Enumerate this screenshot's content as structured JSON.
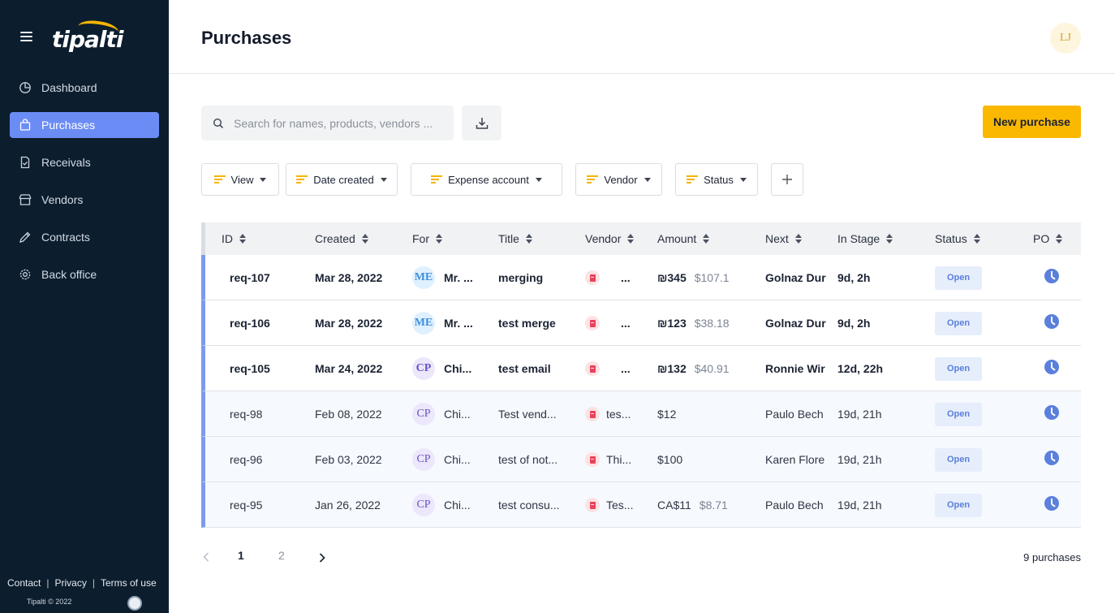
{
  "app": {
    "logo_text": "tipalti"
  },
  "sidebar": {
    "items": [
      {
        "label": "Dashboard",
        "icon": "pie-chart-icon"
      },
      {
        "label": "Purchases",
        "icon": "bag-icon",
        "active": true
      },
      {
        "label": "Receivals",
        "icon": "document-check-icon"
      },
      {
        "label": "Vendors",
        "icon": "store-icon"
      },
      {
        "label": "Contracts",
        "icon": "pen-icon"
      },
      {
        "label": "Back office",
        "icon": "gear-icon"
      }
    ],
    "footer": {
      "contact": "Contact",
      "privacy": "Privacy",
      "terms": "Terms of use",
      "copyright": "Tipalti © 2022"
    }
  },
  "header": {
    "title": "Purchases",
    "avatar_initials": "LJ"
  },
  "toolbar": {
    "search_placeholder": "Search for names, products, vendors ...",
    "new_button": "New purchase"
  },
  "filters": {
    "view": "View",
    "date_created": "Date created",
    "expense_account": "Expense account",
    "vendor": "Vendor",
    "status": "Status"
  },
  "table": {
    "columns": {
      "id": "ID",
      "created": "Created",
      "for": "For",
      "title": "Title",
      "vendor": "Vendor",
      "amount": "Amount",
      "next": "Next",
      "in_stage": "In Stage",
      "status": "Status",
      "po": "PO"
    },
    "rows": [
      {
        "id": "req-107",
        "created": "Mar 28, 2022",
        "for_initials": "ME",
        "for_name": "Mr. ...",
        "title": "merging",
        "vendor": "...",
        "amount": "₪345",
        "amount_usd": "$107.1",
        "next": "Golnaz Dur",
        "in_stage": "9d, 2h",
        "status": "Open"
      },
      {
        "id": "req-106",
        "created": "Mar 28, 2022",
        "for_initials": "ME",
        "for_name": "Mr. ...",
        "title": "test merge",
        "vendor": "...",
        "amount": "₪123",
        "amount_usd": "$38.18",
        "next": "Golnaz Dur",
        "in_stage": "9d, 2h",
        "status": "Open"
      },
      {
        "id": "req-105",
        "created": "Mar 24, 2022",
        "for_initials": "CP",
        "for_name": "Chi...",
        "title": "test email",
        "vendor": "...",
        "amount": "₪132",
        "amount_usd": "$40.91",
        "next": "Ronnie Wir",
        "in_stage": "12d, 22h",
        "status": "Open"
      },
      {
        "id": "req-98",
        "created": "Feb 08, 2022",
        "for_initials": "CP",
        "for_name": "Chi...",
        "title": "Test vend...",
        "vendor": "tes...",
        "amount": "$12",
        "amount_usd": "",
        "next": "Paulo Bech",
        "in_stage": "19d, 21h",
        "status": "Open"
      },
      {
        "id": "req-96",
        "created": "Feb 03, 2022",
        "for_initials": "CP",
        "for_name": "Chi...",
        "title": "test of not...",
        "vendor": "Thi...",
        "amount": "$100",
        "amount_usd": "",
        "next": "Karen Flore",
        "in_stage": "19d, 21h",
        "status": "Open"
      },
      {
        "id": "req-95",
        "created": "Jan 26, 2022",
        "for_initials": "CP",
        "for_name": "Chi...",
        "title": "test consu...",
        "vendor": "Tes...",
        "amount": "CA$11",
        "amount_usd": "$8.71",
        "next": "Paulo Bech",
        "in_stage": "19d, 21h",
        "status": "Open"
      }
    ]
  },
  "pagination": {
    "page1": "1",
    "page2": "2",
    "total": "9 purchases"
  }
}
